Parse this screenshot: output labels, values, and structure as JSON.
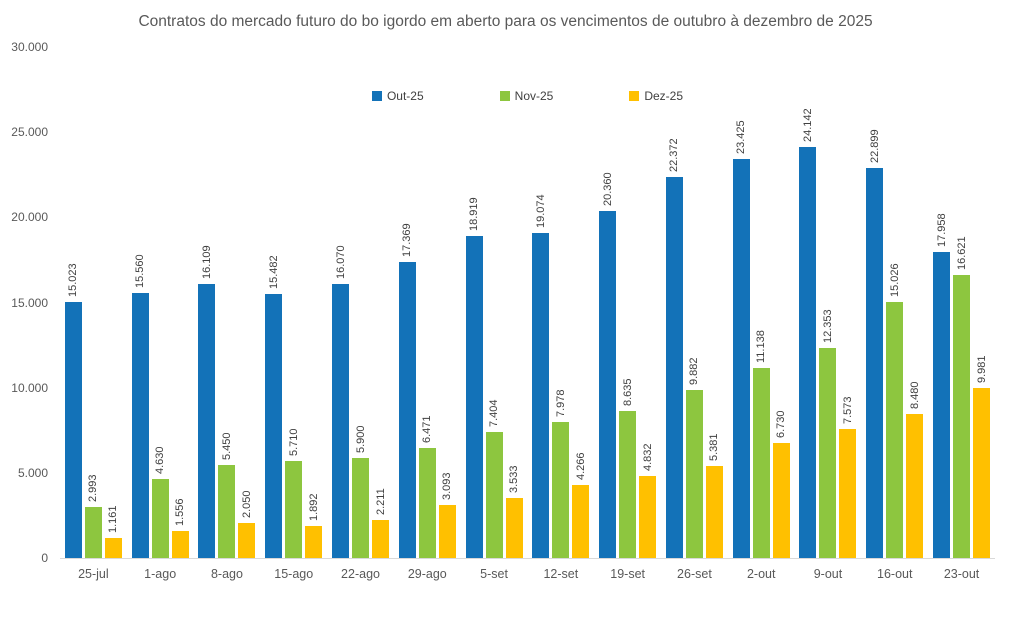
{
  "chart_data": {
    "type": "bar",
    "title": "Contratos do mercado futuro do bo igordo em aberto para os vencimentos de outubro à dezembro de 2025",
    "categories": [
      "25-jul",
      "1-ago",
      "8-ago",
      "15-ago",
      "22-ago",
      "29-ago",
      "5-set",
      "12-set",
      "19-set",
      "26-set",
      "2-out",
      "9-out",
      "16-out",
      "23-out"
    ],
    "series": [
      {
        "name": "Out-25",
        "color": "#1372B8",
        "values": [
          15023,
          15560,
          16109,
          15482,
          16070,
          17369,
          18919,
          19074,
          20360,
          22372,
          23425,
          24142,
          22899,
          17958
        ]
      },
      {
        "name": "Nov-25",
        "color": "#8DC63F",
        "values": [
          2993,
          4630,
          5450,
          5710,
          5900,
          6471,
          7404,
          7978,
          8635,
          9882,
          11138,
          12353,
          15026,
          16621
        ]
      },
      {
        "name": "Dez-25",
        "color": "#FFC000",
        "values": [
          1161,
          1556,
          2050,
          1892,
          2211,
          3093,
          3533,
          4266,
          4832,
          5381,
          6730,
          7573,
          8480,
          9981
        ]
      }
    ],
    "ylim": [
      0,
      30000
    ],
    "y_ticks": [
      0,
      5000,
      10000,
      15000,
      20000,
      25000,
      30000
    ],
    "grid": false,
    "legend_position": "top-center",
    "data_labels": true,
    "data_label_rotation": 90,
    "number_format": "thousands-dot",
    "xlabel": "",
    "ylabel": ""
  },
  "style": {
    "background": "#FFFFFF",
    "title_color": "#595959",
    "axis_text_color": "#595959",
    "data_label_color": "#404040",
    "axis_line_color": "#D9D9D9"
  }
}
